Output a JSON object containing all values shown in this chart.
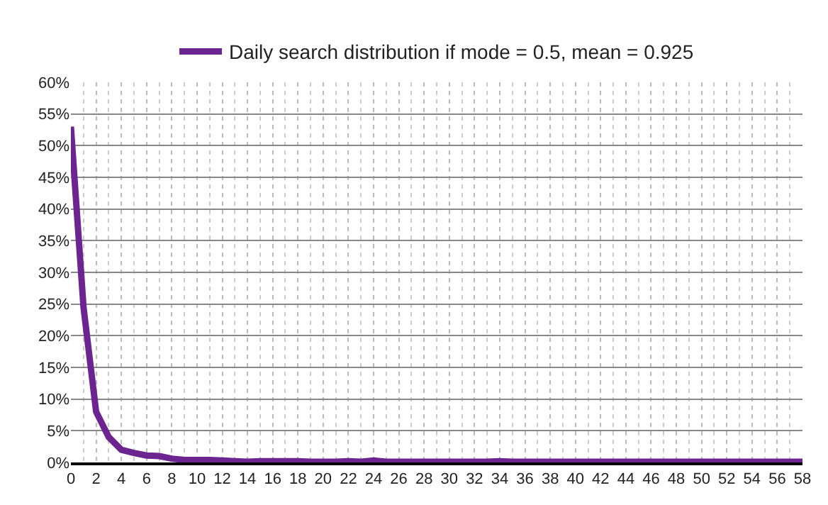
{
  "chart_data": {
    "type": "line",
    "x": [
      0,
      1,
      2,
      3,
      4,
      5,
      6,
      7,
      8,
      9,
      10,
      11,
      12,
      13,
      14,
      15,
      16,
      17,
      18,
      19,
      20,
      21,
      22,
      23,
      24,
      25,
      26,
      27,
      28,
      29,
      30,
      31,
      32,
      33,
      34,
      35,
      36,
      37,
      38,
      39,
      40,
      41,
      42,
      43,
      44,
      45,
      46,
      47,
      48,
      49,
      50,
      51,
      52,
      53,
      54,
      55,
      56,
      57,
      58
    ],
    "series": [
      {
        "name": "Daily search distribution if mode = 0.5, mean = 0.925",
        "color": "#6b2490",
        "values": [
          53,
          24.5,
          8,
          4,
          2,
          1.5,
          1.1,
          1.0,
          0.6,
          0.4,
          0.4,
          0.4,
          0.3,
          0.2,
          0.1,
          0.2,
          0.2,
          0.2,
          0.2,
          0.1,
          0.1,
          0.1,
          0.2,
          0.1,
          0.3,
          0.1,
          0.1,
          0.1,
          0.1,
          0.1,
          0.1,
          0.1,
          0.1,
          0.1,
          0.2,
          0.1,
          0.1,
          0.1,
          0.1,
          0.1,
          0.1,
          0.1,
          0.1,
          0.1,
          0.1,
          0.1,
          0.1,
          0.1,
          0.1,
          0.1,
          0.1,
          0.1,
          0.1,
          0.1,
          0.1,
          0.1,
          0.1,
          0.1,
          0.1
        ]
      }
    ],
    "xlim": [
      0,
      58
    ],
    "xticks": [
      0,
      2,
      4,
      6,
      8,
      10,
      12,
      14,
      16,
      18,
      20,
      22,
      24,
      26,
      28,
      30,
      32,
      34,
      36,
      38,
      40,
      42,
      44,
      46,
      48,
      50,
      52,
      54,
      56,
      58
    ],
    "ylim": [
      0,
      60
    ],
    "yticks": [
      {
        "value": 0,
        "label": "0%"
      },
      {
        "value": 5,
        "label": "5%"
      },
      {
        "value": 10,
        "label": "10%"
      },
      {
        "value": 15,
        "label": "15%"
      },
      {
        "value": 20,
        "label": "20%"
      },
      {
        "value": 25,
        "label": "25%"
      },
      {
        "value": 30,
        "label": "30%"
      },
      {
        "value": 35,
        "label": "35%"
      },
      {
        "value": 40,
        "label": "40%"
      },
      {
        "value": 45,
        "label": "45%"
      },
      {
        "value": 50,
        "label": "50%"
      },
      {
        "value": 55,
        "label": "55%"
      },
      {
        "value": 60,
        "label": "60%"
      }
    ],
    "grid": true,
    "legend": "top",
    "marker": "none",
    "line_style": "solid"
  }
}
